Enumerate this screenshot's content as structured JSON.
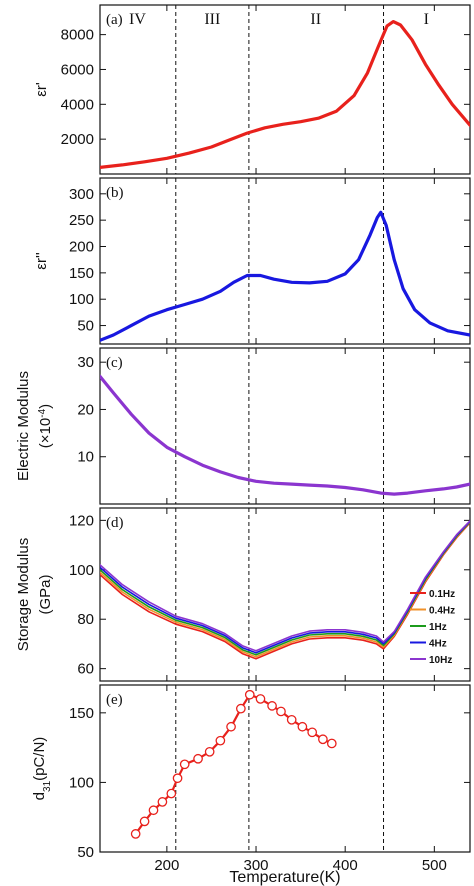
{
  "chart_data": {
    "type": "line",
    "xlabel": "Temperature(K)",
    "xlim": [
      125,
      540
    ],
    "x_ticks": [
      200,
      300,
      400,
      500
    ],
    "phase_boundaries": [
      210,
      292,
      443
    ],
    "regions": [
      {
        "label": "IV",
        "x": 167
      },
      {
        "label": "III",
        "x": 251
      },
      {
        "label": "II",
        "x": 367
      },
      {
        "label": "I",
        "x": 491
      }
    ],
    "panels": [
      {
        "letter": "(a)",
        "ylabel": "εr'",
        "ylim": [
          0,
          9700
        ],
        "yticks": [
          2000,
          4000,
          6000,
          8000
        ],
        "series": [
          {
            "color": "#e8211c",
            "points": [
              [
                125,
                380
              ],
              [
                150,
                520
              ],
              [
                175,
                700
              ],
              [
                200,
                900
              ],
              [
                225,
                1200
              ],
              [
                250,
                1550
              ],
              [
                270,
                1950
              ],
              [
                290,
                2350
              ],
              [
                310,
                2650
              ],
              [
                330,
                2850
              ],
              [
                350,
                3000
              ],
              [
                370,
                3200
              ],
              [
                390,
                3600
              ],
              [
                410,
                4500
              ],
              [
                425,
                5800
              ],
              [
                437,
                7300
              ],
              [
                447,
                8500
              ],
              [
                454,
                8750
              ],
              [
                462,
                8550
              ],
              [
                475,
                7700
              ],
              [
                490,
                6300
              ],
              [
                505,
                5100
              ],
              [
                520,
                4000
              ],
              [
                540,
                2800
              ]
            ]
          }
        ]
      },
      {
        "letter": "(b)",
        "ylabel": "εr''",
        "ylim": [
          15,
          330
        ],
        "yticks": [
          50,
          100,
          150,
          200,
          250,
          300
        ],
        "series": [
          {
            "color": "#1818e0",
            "points": [
              [
                125,
                22
              ],
              [
                140,
                32
              ],
              [
                160,
                50
              ],
              [
                180,
                68
              ],
              [
                200,
                80
              ],
              [
                220,
                90
              ],
              [
                240,
                100
              ],
              [
                260,
                115
              ],
              [
                275,
                132
              ],
              [
                290,
                145
              ],
              [
                305,
                145
              ],
              [
                320,
                138
              ],
              [
                340,
                132
              ],
              [
                360,
                131
              ],
              [
                380,
                134
              ],
              [
                400,
                148
              ],
              [
                415,
                175
              ],
              [
                428,
                222
              ],
              [
                436,
                255
              ],
              [
                440,
                265
              ],
              [
                446,
                240
              ],
              [
                455,
                175
              ],
              [
                465,
                120
              ],
              [
                478,
                80
              ],
              [
                495,
                55
              ],
              [
                515,
                40
              ],
              [
                540,
                32
              ]
            ]
          }
        ]
      },
      {
        "letter": "(c)",
        "ylabel": "Electric Modulus",
        "ylabel2": "(×10",
        "ylabel2_sup": "-4",
        "ylabel2_end": ")",
        "ylim": [
          0,
          33
        ],
        "yticks": [
          10,
          20,
          30
        ],
        "series": [
          {
            "color": "#8b35cf",
            "points": [
              [
                125,
                27
              ],
              [
                140,
                23.5
              ],
              [
                160,
                19
              ],
              [
                180,
                15
              ],
              [
                200,
                12
              ],
              [
                220,
                10
              ],
              [
                240,
                8.2
              ],
              [
                260,
                6.8
              ],
              [
                280,
                5.6
              ],
              [
                300,
                4.8
              ],
              [
                320,
                4.4
              ],
              [
                340,
                4.2
              ],
              [
                360,
                4.0
              ],
              [
                380,
                3.8
              ],
              [
                400,
                3.5
              ],
              [
                420,
                3.0
              ],
              [
                440,
                2.3
              ],
              [
                455,
                2.1
              ],
              [
                470,
                2.3
              ],
              [
                490,
                2.8
              ],
              [
                510,
                3.2
              ],
              [
                525,
                3.6
              ],
              [
                540,
                4.2
              ]
            ]
          }
        ]
      },
      {
        "letter": "(d)",
        "ylabel": "Storage Modulus",
        "ylabel2": "(GPa)",
        "ylim": [
          55,
          125
        ],
        "yticks": [
          60,
          80,
          100,
          120
        ],
        "legend": [
          "0.1Hz",
          "0.4Hz",
          "1Hz",
          "4Hz",
          "10Hz"
        ],
        "series": [
          {
            "name": "0.1Hz",
            "color": "#e8211c",
            "points": [
              [
                125,
                98
              ],
              [
                150,
                90
              ],
              [
                180,
                83
              ],
              [
                210,
                78
              ],
              [
                240,
                75
              ],
              [
                265,
                71
              ],
              [
                285,
                66
              ],
              [
                300,
                64
              ],
              [
                320,
                67
              ],
              [
                340,
                70
              ],
              [
                360,
                72
              ],
              [
                380,
                72.5
              ],
              [
                400,
                72.5
              ],
              [
                420,
                71.5
              ],
              [
                435,
                70
              ],
              [
                443,
                68
              ],
              [
                455,
                73
              ],
              [
                470,
                82
              ],
              [
                490,
                95
              ],
              [
                510,
                106
              ],
              [
                525,
                113
              ],
              [
                540,
                119
              ]
            ]
          },
          {
            "name": "0.4Hz",
            "color": "#f0922a",
            "points": [
              [
                125,
                99
              ],
              [
                150,
                91
              ],
              [
                180,
                84
              ],
              [
                210,
                78.8
              ],
              [
                240,
                75.8
              ],
              [
                265,
                71.8
              ],
              [
                285,
                66.8
              ],
              [
                300,
                64.8
              ],
              [
                320,
                67.8
              ],
              [
                340,
                70.8
              ],
              [
                360,
                72.8
              ],
              [
                380,
                73.3
              ],
              [
                400,
                73.3
              ],
              [
                420,
                72.3
              ],
              [
                435,
                70.8
              ],
              [
                443,
                68.7
              ],
              [
                455,
                73.5
              ],
              [
                470,
                82.5
              ],
              [
                490,
                95.5
              ],
              [
                510,
                106.3
              ],
              [
                525,
                113.3
              ],
              [
                540,
                119.2
              ]
            ]
          },
          {
            "name": "1Hz",
            "color": "#1c9b1c",
            "points": [
              [
                125,
                100
              ],
              [
                150,
                92
              ],
              [
                180,
                85
              ],
              [
                210,
                79.6
              ],
              [
                240,
                76.6
              ],
              [
                265,
                72.6
              ],
              [
                285,
                67.6
              ],
              [
                300,
                65.6
              ],
              [
                320,
                68.6
              ],
              [
                340,
                71.6
              ],
              [
                360,
                73.6
              ],
              [
                380,
                74.1
              ],
              [
                400,
                74.1
              ],
              [
                420,
                73.1
              ],
              [
                435,
                71.6
              ],
              [
                443,
                69.4
              ],
              [
                455,
                74
              ],
              [
                470,
                83
              ],
              [
                490,
                96
              ],
              [
                510,
                106.6
              ],
              [
                525,
                113.6
              ],
              [
                540,
                119.4
              ]
            ]
          },
          {
            "name": "4Hz",
            "color": "#1818e0",
            "points": [
              [
                125,
                101
              ],
              [
                150,
                93
              ],
              [
                180,
                86
              ],
              [
                210,
                80.4
              ],
              [
                240,
                77.4
              ],
              [
                265,
                73.4
              ],
              [
                285,
                68.4
              ],
              [
                300,
                66.4
              ],
              [
                320,
                69.4
              ],
              [
                340,
                72.4
              ],
              [
                360,
                74.4
              ],
              [
                380,
                74.9
              ],
              [
                400,
                74.9
              ],
              [
                420,
                73.9
              ],
              [
                435,
                72.4
              ],
              [
                443,
                70.1
              ],
              [
                455,
                74.5
              ],
              [
                470,
                83.5
              ],
              [
                490,
                96.5
              ],
              [
                510,
                106.9
              ],
              [
                525,
                113.9
              ],
              [
                540,
                119.6
              ]
            ]
          },
          {
            "name": "10Hz",
            "color": "#8b35cf",
            "points": [
              [
                125,
                102
              ],
              [
                150,
                94
              ],
              [
                180,
                87
              ],
              [
                210,
                81.2
              ],
              [
                240,
                78.2
              ],
              [
                265,
                74.2
              ],
              [
                285,
                69.2
              ],
              [
                300,
                67.2
              ],
              [
                320,
                70.2
              ],
              [
                340,
                73.2
              ],
              [
                360,
                75.2
              ],
              [
                380,
                75.7
              ],
              [
                400,
                75.7
              ],
              [
                420,
                74.7
              ],
              [
                435,
                73.2
              ],
              [
                443,
                70.8
              ],
              [
                455,
                75
              ],
              [
                470,
                84
              ],
              [
                490,
                97
              ],
              [
                510,
                107.2
              ],
              [
                525,
                114.2
              ],
              [
                540,
                119.8
              ]
            ]
          }
        ]
      },
      {
        "letter": "(e)",
        "ylabel": "d",
        "ylabel_sub": "31",
        "ylabel_end": "(pC/N)",
        "ylim": [
          50,
          170
        ],
        "yticks": [
          50,
          100,
          150
        ],
        "series": [
          {
            "color": "#e8211c",
            "marker": "open-circle",
            "points": [
              [
                165,
                63
              ],
              [
                175,
                72
              ],
              [
                185,
                80
              ],
              [
                195,
                86
              ],
              [
                205,
                92
              ],
              [
                212,
                103
              ],
              [
                220,
                113
              ],
              [
                235,
                117
              ],
              [
                248,
                122
              ],
              [
                260,
                130
              ],
              [
                272,
                140
              ],
              [
                283,
                153
              ],
              [
                293,
                163
              ],
              [
                305,
                160
              ],
              [
                318,
                155
              ],
              [
                328,
                151
              ],
              [
                340,
                145
              ],
              [
                352,
                140
              ],
              [
                363,
                136
              ],
              [
                375,
                131
              ],
              [
                385,
                128
              ]
            ]
          }
        ]
      }
    ]
  }
}
